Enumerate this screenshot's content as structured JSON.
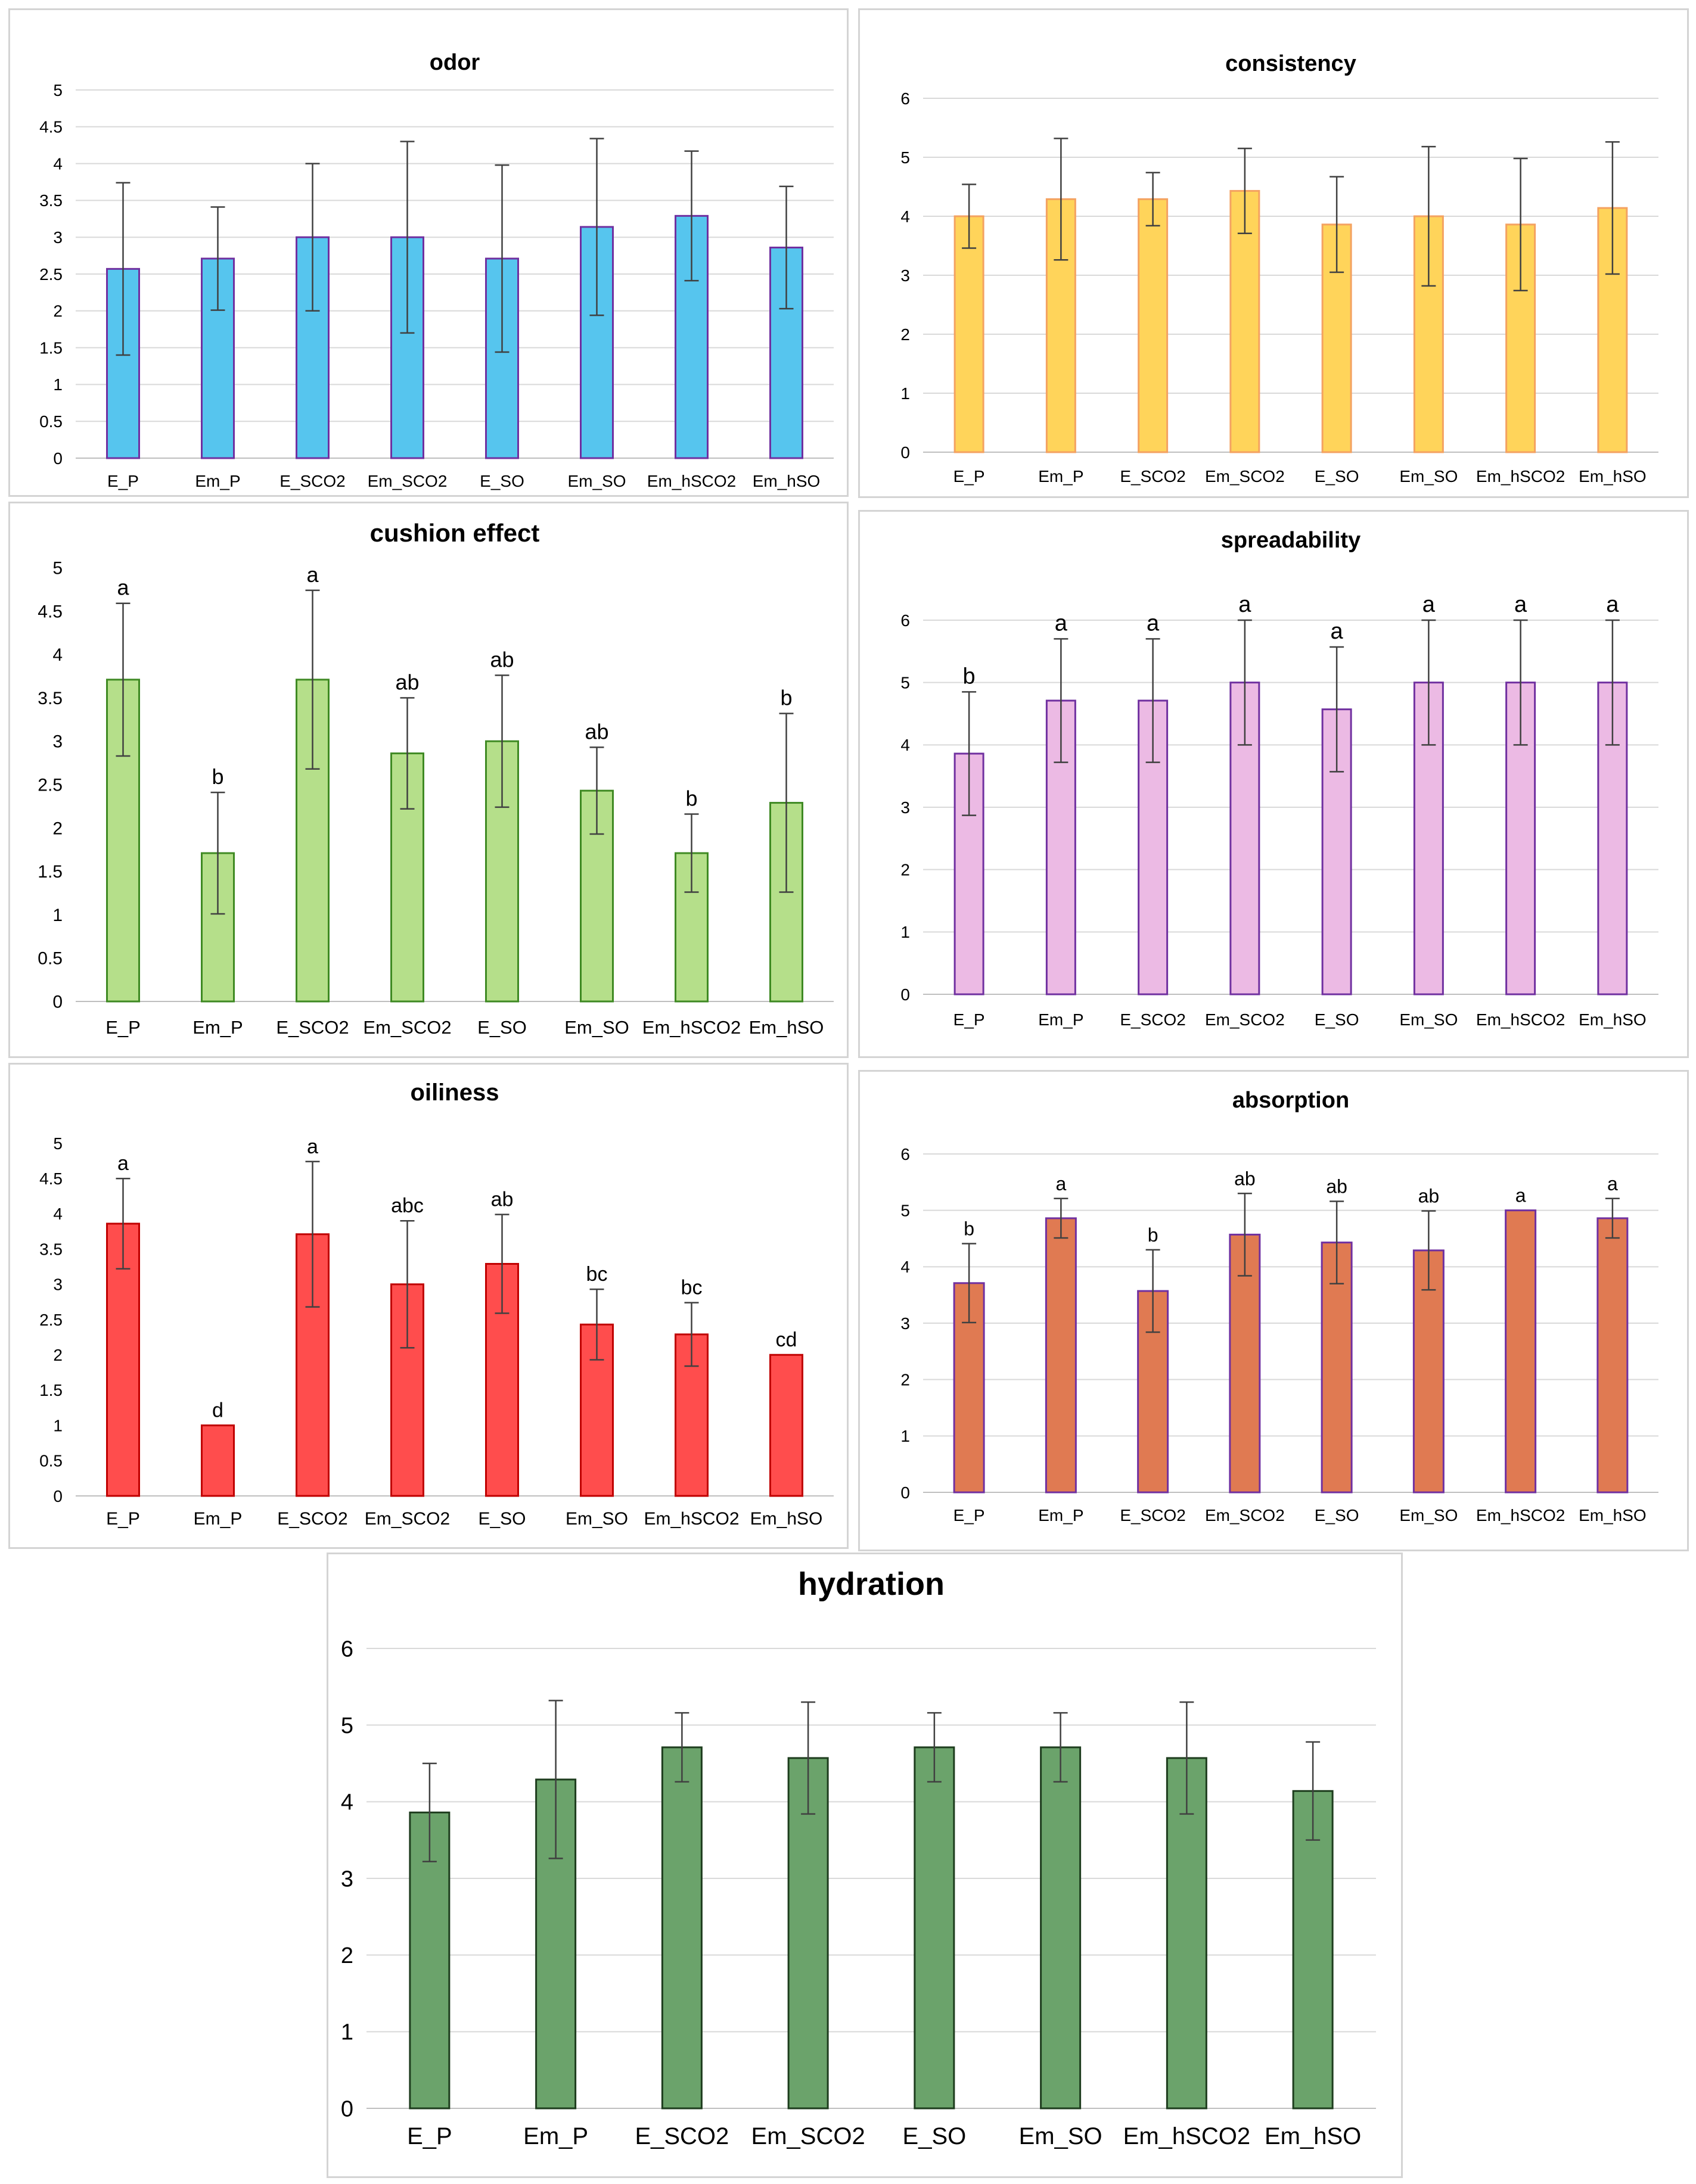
{
  "chart_data": [
    {
      "id": "odor",
      "type": "bar",
      "title": "odor",
      "categories": [
        "E_P",
        "Em_P",
        "E_SCO2",
        "Em_SCO2",
        "E_SO",
        "Em_SO",
        "Em_hSCO2",
        "Em_hSO"
      ],
      "values": [
        2.57,
        2.71,
        3.0,
        3.0,
        2.71,
        3.14,
        3.29,
        2.86
      ],
      "errors": [
        1.17,
        0.7,
        1.0,
        1.3,
        1.27,
        1.2,
        0.88,
        0.83
      ],
      "significance": [],
      "ylim": [
        0,
        5
      ],
      "ystep": 0.5,
      "yticks": [
        "0",
        "0.5",
        "1",
        "1.5",
        "2",
        "2.5",
        "3",
        "3.5",
        "4",
        "4.5",
        "5"
      ],
      "grid": true,
      "colors": {
        "fill": "#56c5ee",
        "stroke": "#7030a0"
      }
    },
    {
      "id": "consistency",
      "type": "bar",
      "title": "consistency",
      "categories": [
        "E_P",
        "Em_P",
        "E_SCO2",
        "Em_SCO2",
        "E_SO",
        "Em_SO",
        "Em_hSCO2",
        "Em_hSO"
      ],
      "values": [
        4.0,
        4.29,
        4.29,
        4.43,
        3.86,
        4.0,
        3.86,
        4.14
      ],
      "errors": [
        0.54,
        1.03,
        0.45,
        0.72,
        0.81,
        1.18,
        1.12,
        1.12
      ],
      "significance": [],
      "ylim": [
        0,
        6
      ],
      "ystep": 1,
      "yticks": [
        "0",
        "1",
        "2",
        "3",
        "4",
        "5",
        "6"
      ],
      "grid": true,
      "colors": {
        "fill": "#ffd45a",
        "stroke": "#f4a261"
      }
    },
    {
      "id": "cushion",
      "type": "bar",
      "title": "cushion effect",
      "categories": [
        "E_P",
        "Em_P",
        "E_SCO2",
        "Em_SCO2",
        "E_SO",
        "Em_SO",
        "Em_hSCO2",
        "Em_hSO"
      ],
      "values": [
        3.71,
        1.71,
        3.71,
        2.86,
        3.0,
        2.43,
        1.71,
        2.29
      ],
      "errors": [
        0.88,
        0.7,
        1.03,
        0.64,
        0.76,
        0.5,
        0.45,
        1.03
      ],
      "significance": [
        "a",
        "b",
        "a",
        "ab",
        "ab",
        "ab",
        "b",
        "b"
      ],
      "ylim": [
        0,
        5
      ],
      "ystep": 0.5,
      "yticks": [
        "0",
        "0.5",
        "1",
        "1.5",
        "2",
        "2.5",
        "3",
        "3.5",
        "4",
        "4.5",
        "5"
      ],
      "grid": false,
      "colors": {
        "fill": "#b5df8a",
        "stroke": "#3f8a23"
      }
    },
    {
      "id": "spreadability",
      "type": "bar",
      "title": "spreadability",
      "categories": [
        "E_P",
        "Em_P",
        "E_SCO2",
        "Em_SCO2",
        "E_SO",
        "Em_SO",
        "Em_hSCO2",
        "Em_hSO"
      ],
      "values": [
        3.86,
        4.71,
        4.71,
        5.0,
        4.57,
        5.0,
        5.0,
        5.0
      ],
      "errors": [
        0.99,
        0.99,
        0.99,
        1.0,
        1.0,
        1.0,
        1.0,
        1.0
      ],
      "significance": [
        "b",
        "a",
        "a",
        "a",
        "a",
        "a",
        "a",
        "a"
      ],
      "ylim": [
        0,
        6
      ],
      "ystep": 1,
      "yticks": [
        "0",
        "1",
        "2",
        "3",
        "4",
        "5",
        "6"
      ],
      "grid": true,
      "colors": {
        "fill": "#ecbae4",
        "stroke": "#7030a0"
      }
    },
    {
      "id": "oiliness",
      "type": "bar",
      "title": "oiliness",
      "categories": [
        "E_P",
        "Em_P",
        "E_SCO2",
        "Em_SCO2",
        "E_SO",
        "Em_SO",
        "Em_hSCO2",
        "Em_hSO"
      ],
      "values": [
        3.86,
        1.0,
        3.71,
        3.0,
        3.29,
        2.43,
        2.29,
        2.0
      ],
      "errors": [
        0.64,
        0.0,
        1.03,
        0.9,
        0.7,
        0.5,
        0.45,
        0.0
      ],
      "significance": [
        "a",
        "d",
        "a",
        "abc",
        "ab",
        "bc",
        "bc",
        "cd"
      ],
      "ylim": [
        0,
        5
      ],
      "ystep": 0.5,
      "yticks": [
        "0",
        "0.5",
        "1",
        "1.5",
        "2",
        "2.5",
        "3",
        "3.5",
        "4",
        "4.5",
        "5"
      ],
      "grid": false,
      "colors": {
        "fill": "#ff4d4d",
        "stroke": "#c00000"
      }
    },
    {
      "id": "absorption",
      "type": "bar",
      "title": "absorption",
      "categories": [
        "E_P",
        "Em_P",
        "E_SCO2",
        "Em_SCO2",
        "E_SO",
        "Em_SO",
        "Em_hSCO2",
        "Em_hSO"
      ],
      "values": [
        3.71,
        4.86,
        3.57,
        4.57,
        4.43,
        4.29,
        5.0,
        4.86
      ],
      "errors": [
        0.7,
        0.35,
        0.73,
        0.73,
        0.73,
        0.7,
        0.0,
        0.35
      ],
      "significance": [
        "b",
        "a",
        "b",
        "ab",
        "ab",
        "ab",
        "a",
        "a"
      ],
      "ylim": [
        0,
        6
      ],
      "ystep": 1,
      "yticks": [
        "0",
        "1",
        "2",
        "3",
        "4",
        "5",
        "6"
      ],
      "grid": true,
      "colors": {
        "fill": "#e07a52",
        "stroke": "#7030a0"
      }
    },
    {
      "id": "hydration",
      "type": "bar",
      "title": "hydration",
      "categories": [
        "E_P",
        "Em_P",
        "E_SCO2",
        "Em_SCO2",
        "E_SO",
        "Em_SO",
        "Em_hSCO2",
        "Em_hSO"
      ],
      "values": [
        3.86,
        4.29,
        4.71,
        4.57,
        4.71,
        4.71,
        4.57,
        4.14
      ],
      "errors": [
        0.64,
        1.03,
        0.45,
        0.73,
        0.45,
        0.45,
        0.73,
        0.64
      ],
      "significance": [],
      "ylim": [
        0,
        6
      ],
      "ystep": 1,
      "yticks": [
        "0",
        "1",
        "2",
        "3",
        "4",
        "5",
        "6"
      ],
      "grid": true,
      "colors": {
        "fill": "#6ba36b",
        "stroke": "#1e3d1e"
      }
    }
  ]
}
